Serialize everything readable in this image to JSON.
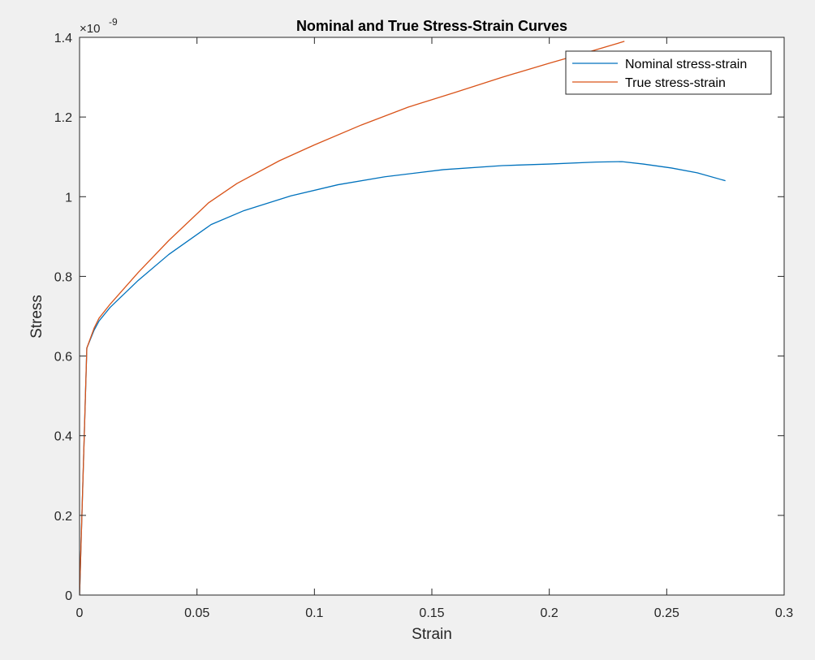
{
  "chart_data": {
    "type": "line",
    "title": "Nominal and True Stress-Strain Curves",
    "xlabel": "Strain",
    "ylabel": "Stress",
    "xlim": [
      0,
      0.3
    ],
    "ylim": [
      0,
      1.4
    ],
    "y_multiplier_label": "×10",
    "y_multiplier_exponent": "-9",
    "x_ticks": [
      0,
      0.05,
      0.1,
      0.15,
      0.2,
      0.25,
      0.3
    ],
    "x_tick_labels": [
      "0",
      "0.05",
      "0.1",
      "0.15",
      "0.2",
      "0.25",
      "0.3"
    ],
    "y_ticks": [
      0,
      0.2,
      0.4,
      0.6,
      0.8,
      1.0,
      1.2,
      1.4
    ],
    "y_tick_labels": [
      "0",
      "0.2",
      "0.4",
      "0.6",
      "0.8",
      "1",
      "1.2",
      "1.4"
    ],
    "grid": false,
    "legend_position": "top-right",
    "series": [
      {
        "name": "Nominal stress-strain",
        "color": "#0072bd",
        "points": [
          [
            0,
            0
          ],
          [
            0.0031,
            0.62
          ],
          [
            0.0062,
            0.665
          ],
          [
            0.0083,
            0.688
          ],
          [
            0.013,
            0.722
          ],
          [
            0.025,
            0.79
          ],
          [
            0.038,
            0.855
          ],
          [
            0.056,
            0.93
          ],
          [
            0.07,
            0.965
          ],
          [
            0.09,
            1.002
          ],
          [
            0.11,
            1.03
          ],
          [
            0.13,
            1.05
          ],
          [
            0.155,
            1.068
          ],
          [
            0.18,
            1.078
          ],
          [
            0.2,
            1.082
          ],
          [
            0.22,
            1.087
          ],
          [
            0.231,
            1.088
          ],
          [
            0.24,
            1.082
          ],
          [
            0.252,
            1.072
          ],
          [
            0.263,
            1.06
          ],
          [
            0.275,
            1.04
          ]
        ]
      },
      {
        "name": "True stress-strain",
        "color": "#d95319",
        "points": [
          [
            0,
            0
          ],
          [
            0.0031,
            0.62
          ],
          [
            0.0062,
            0.67
          ],
          [
            0.0083,
            0.695
          ],
          [
            0.013,
            0.73
          ],
          [
            0.025,
            0.81
          ],
          [
            0.038,
            0.89
          ],
          [
            0.055,
            0.985
          ],
          [
            0.067,
            1.033
          ],
          [
            0.085,
            1.09
          ],
          [
            0.1,
            1.13
          ],
          [
            0.12,
            1.18
          ],
          [
            0.14,
            1.225
          ],
          [
            0.16,
            1.262
          ],
          [
            0.18,
            1.3
          ],
          [
            0.2,
            1.335
          ],
          [
            0.216,
            1.362
          ],
          [
            0.232,
            1.39
          ]
        ]
      }
    ]
  }
}
